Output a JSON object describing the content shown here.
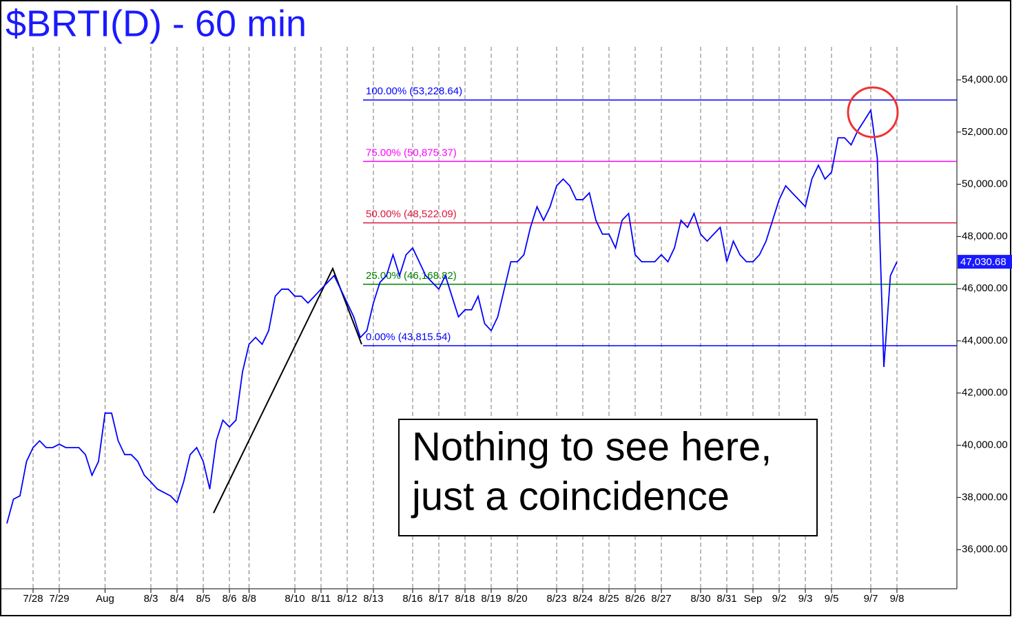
{
  "chart_data": {
    "type": "line",
    "title": "$BRTI(D) - 60 min",
    "categories": [
      null,
      null,
      null,
      null,
      "7/28",
      null,
      null,
      null,
      "7/29",
      null,
      null,
      null,
      null,
      null,
      null,
      "Aug",
      null,
      null,
      null,
      null,
      null,
      null,
      "8/3",
      null,
      null,
      null,
      "8/4",
      null,
      null,
      null,
      "8/5",
      null,
      null,
      null,
      "8/6",
      null,
      null,
      "8/8",
      null,
      null,
      null,
      null,
      null,
      null,
      "8/10",
      null,
      null,
      null,
      "8/11",
      null,
      null,
      null,
      "8/12",
      null,
      null,
      null,
      "8/13",
      null,
      null,
      null,
      null,
      null,
      "8/16",
      null,
      null,
      null,
      "8/17",
      null,
      null,
      null,
      "8/18",
      null,
      null,
      null,
      "8/19",
      null,
      null,
      null,
      "8/20",
      null,
      null,
      null,
      null,
      null,
      "8/23",
      null,
      null,
      null,
      "8/24",
      null,
      null,
      null,
      "8/25",
      null,
      null,
      null,
      "8/26",
      null,
      null,
      null,
      "8/27",
      null,
      null,
      null,
      null,
      null,
      "8/30",
      null,
      null,
      null,
      "8/31",
      null,
      null,
      null,
      "Sep",
      null,
      null,
      null,
      "9/2",
      null,
      null,
      null,
      "9/3",
      null,
      null,
      null,
      "9/5",
      null,
      null,
      null,
      null,
      null,
      "9/7",
      null,
      null,
      null,
      "9/8"
    ],
    "series": [
      {
        "name": "$BRTI(D)",
        "color": "#0000ff",
        "values": [
          37000,
          37930,
          38060,
          39380,
          39910,
          40170,
          39910,
          39910,
          40040,
          39910,
          39910,
          39910,
          39640,
          38850,
          39380,
          41230,
          41230,
          40170,
          39640,
          39640,
          39380,
          38850,
          38590,
          38320,
          38190,
          38060,
          37800,
          38590,
          39640,
          39910,
          39380,
          38320,
          40170,
          40960,
          40700,
          40960,
          42810,
          43870,
          44130,
          43870,
          44390,
          45710,
          45980,
          45980,
          45710,
          45710,
          45450,
          45710,
          45980,
          46240,
          46500,
          45980,
          45450,
          44920,
          44130,
          44390,
          45450,
          46240,
          46500,
          47300,
          46500,
          47300,
          47560,
          47030,
          46500,
          46240,
          45980,
          46500,
          45710,
          44920,
          45190,
          45190,
          45710,
          44660,
          44390,
          44920,
          45980,
          47030,
          47030,
          47300,
          48350,
          49140,
          48620,
          49140,
          49940,
          50200,
          49940,
          49410,
          49410,
          49670,
          48620,
          48090,
          48090,
          47560,
          48620,
          48880,
          47300,
          47030,
          47030,
          47030,
          47300,
          47030,
          47560,
          48620,
          48350,
          48880,
          48090,
          47820,
          48090,
          48350,
          47030,
          47820,
          47300,
          47030,
          47030,
          47300,
          47820,
          48620,
          49410,
          49940,
          49670,
          49410,
          49140,
          50200,
          50730,
          50200,
          50460,
          51780,
          51780,
          51510,
          52050,
          52440,
          52840,
          51000,
          43000,
          46500,
          47030.68
        ]
      }
    ],
    "last_label": "47,030.68",
    "ylim": [
      34500,
      56850
    ],
    "yticks": [
      {
        "value": 36000,
        "label": "36,000.00"
      },
      {
        "value": 38000,
        "label": "38,000.00"
      },
      {
        "value": 40000,
        "label": "40,000.00"
      },
      {
        "value": 42000,
        "label": "42,000.00"
      },
      {
        "value": 44000,
        "label": "44,000.00"
      },
      {
        "value": 46000,
        "label": "46,000.00"
      },
      {
        "value": 48000,
        "label": "48,000.00"
      },
      {
        "value": 50000,
        "label": "50,000.00"
      },
      {
        "value": 52000,
        "label": "52,000.00"
      },
      {
        "value": 54000,
        "label": "54,000.00"
      }
    ],
    "levels": [
      {
        "label": "100.00% (53,228.64)",
        "value": 53228.64,
        "color": "#0000ff"
      },
      {
        "label": "75.00% (50,875.37)",
        "value": 50875.37,
        "color": "#ff00ff"
      },
      {
        "label": "50.00% (48,522.09)",
        "value": 48522.09,
        "color": "#dc143c"
      },
      {
        "label": "25.00% (46,168.82)",
        "value": 46168.82,
        "color": "#008000"
      },
      {
        "label": "0.00% (43,815.54)",
        "value": 43815.54,
        "color": "#0000ff"
      }
    ],
    "annotation": [
      "Nothing to see here,",
      "just a coincidence"
    ]
  }
}
